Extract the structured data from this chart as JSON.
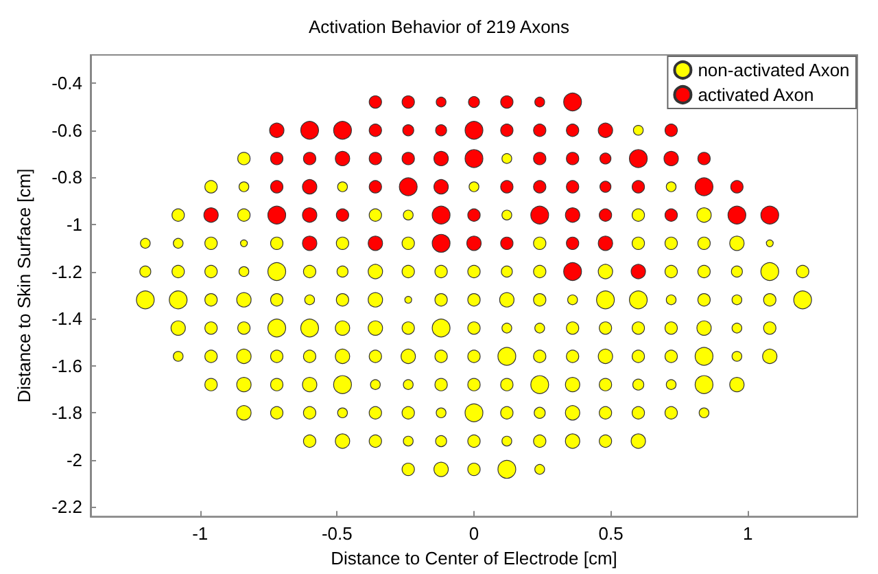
{
  "chart_data": {
    "type": "bubble",
    "title": "Activation Behavior of 219 Axons",
    "xlabel": "Distance to Center of Electrode [cm]",
    "ylabel": "Distance to Skin Surface [cm]",
    "xlim": [
      -1.4,
      1.4
    ],
    "xticks": [
      -1,
      -0.5,
      0,
      0.5,
      1
    ],
    "ylim": [
      -2.24,
      -0.28
    ],
    "yticks": [
      -2.2,
      -2,
      -1.8,
      -1.6,
      -1.4,
      -1.2,
      -1,
      -0.8,
      -0.6,
      -0.4
    ],
    "grid": false,
    "legend": "top right",
    "marker": "circle",
    "series": [
      {
        "name": "non-activated Axon",
        "color": "#ffff00",
        "x": [
          0.6,
          -0.84,
          0.12,
          -0.96,
          -0.84,
          -0.48,
          0,
          0.72,
          -1.08,
          -0.84,
          -0.36,
          -0.24,
          0.12,
          0.6,
          0.84,
          -1.2,
          -1.08,
          -0.96,
          -0.84,
          -0.72,
          -0.48,
          -0.24,
          0.24,
          0.6,
          0.72,
          0.84,
          0.96,
          1.08,
          -1.2,
          -1.08,
          -0.96,
          -0.84,
          -0.72,
          -0.6,
          -0.48,
          -0.36,
          -0.24,
          -0.12,
          0,
          0.12,
          0.24,
          0.48,
          0.72,
          0.84,
          0.96,
          1.08,
          1.2,
          -1.2,
          -1.08,
          -0.96,
          -0.84,
          -0.72,
          -0.6,
          -0.48,
          -0.36,
          -0.24,
          -0.12,
          0,
          0.12,
          0.24,
          0.36,
          0.48,
          0.6,
          0.72,
          0.84,
          0.96,
          1.08,
          1.2,
          -1.08,
          -0.96,
          -0.84,
          -0.72,
          -0.6,
          -0.48,
          -0.36,
          -0.24,
          -0.12,
          0,
          0.12,
          0.24,
          0.36,
          0.48,
          0.6,
          0.72,
          0.84,
          0.96,
          1.08,
          -1.08,
          -0.96,
          -0.84,
          -0.72,
          -0.6,
          -0.48,
          -0.36,
          -0.24,
          -0.12,
          0,
          0.12,
          0.24,
          0.36,
          0.48,
          0.6,
          0.72,
          0.84,
          0.96,
          1.08,
          -0.96,
          -0.84,
          -0.72,
          -0.6,
          -0.48,
          -0.36,
          -0.24,
          -0.12,
          0,
          0.12,
          0.24,
          0.36,
          0.48,
          0.6,
          0.72,
          0.84,
          0.96,
          -0.84,
          -0.72,
          -0.6,
          -0.48,
          -0.36,
          -0.24,
          -0.12,
          0,
          0.12,
          0.24,
          0.36,
          0.48,
          0.6,
          0.72,
          0.84,
          -0.6,
          -0.48,
          -0.36,
          -0.24,
          -0.12,
          0,
          0.12,
          0.24,
          0.36,
          0.48,
          0.6,
          -0.24,
          -0.12,
          0,
          0.12,
          0.24
        ],
        "values": [
          -0.6,
          -0.72,
          -0.72,
          -0.84,
          -0.84,
          -0.84,
          -0.84,
          -0.84,
          -0.96,
          -0.96,
          -0.96,
          -0.96,
          -0.96,
          -0.96,
          -0.96,
          -1.08,
          -1.08,
          -1.08,
          -1.08,
          -1.08,
          -1.08,
          -1.08,
          -1.08,
          -1.08,
          -1.08,
          -1.08,
          -1.08,
          -1.08,
          -1.2,
          -1.2,
          -1.2,
          -1.2,
          -1.2,
          -1.2,
          -1.2,
          -1.2,
          -1.2,
          -1.2,
          -1.2,
          -1.2,
          -1.2,
          -1.2,
          -1.2,
          -1.2,
          -1.2,
          -1.2,
          -1.2,
          -1.32,
          -1.32,
          -1.32,
          -1.32,
          -1.32,
          -1.32,
          -1.32,
          -1.32,
          -1.32,
          -1.32,
          -1.32,
          -1.32,
          -1.32,
          -1.32,
          -1.32,
          -1.32,
          -1.32,
          -1.32,
          -1.32,
          -1.32,
          -1.32,
          -1.44,
          -1.44,
          -1.44,
          -1.44,
          -1.44,
          -1.44,
          -1.44,
          -1.44,
          -1.44,
          -1.44,
          -1.44,
          -1.44,
          -1.44,
          -1.44,
          -1.44,
          -1.44,
          -1.44,
          -1.44,
          -1.44,
          -1.56,
          -1.56,
          -1.56,
          -1.56,
          -1.56,
          -1.56,
          -1.56,
          -1.56,
          -1.56,
          -1.56,
          -1.56,
          -1.56,
          -1.56,
          -1.56,
          -1.56,
          -1.56,
          -1.56,
          -1.56,
          -1.56,
          -1.68,
          -1.68,
          -1.68,
          -1.68,
          -1.68,
          -1.68,
          -1.68,
          -1.68,
          -1.68,
          -1.68,
          -1.68,
          -1.68,
          -1.68,
          -1.68,
          -1.68,
          -1.68,
          -1.68,
          -1.8,
          -1.8,
          -1.8,
          -1.8,
          -1.8,
          -1.8,
          -1.8,
          -1.8,
          -1.8,
          -1.8,
          -1.8,
          -1.8,
          -1.8,
          -1.8,
          -1.8,
          -1.92,
          -1.92,
          -1.92,
          -1.92,
          -1.92,
          -1.92,
          -1.92,
          -1.92,
          -1.92,
          -1.92,
          -1.92,
          -2.04,
          -2.04,
          -2.04,
          -2.04,
          -2.04
        ],
        "sizes": [
          0.3,
          0.48,
          0.3,
          0.48,
          0.3,
          0.3,
          0.3,
          0.3,
          0.48,
          0.48,
          0.48,
          0.3,
          0.3,
          0.48,
          0.65,
          0.3,
          0.3,
          0.48,
          0.15,
          0.48,
          0.48,
          0.48,
          0.48,
          0.48,
          0.48,
          0.48,
          0.65,
          0.15,
          0.38,
          0.48,
          0.48,
          0.3,
          1,
          0.48,
          0.38,
          0.65,
          0.48,
          0.48,
          0.48,
          0.38,
          0.48,
          0.65,
          0.48,
          0.48,
          0.38,
          1,
          0.48,
          1,
          1,
          0.48,
          0.65,
          0.48,
          0.3,
          0.48,
          0.65,
          0.15,
          0.48,
          0.48,
          0.65,
          0.48,
          0.3,
          1,
          1,
          0.3,
          0.48,
          0.3,
          0.48,
          1,
          0.65,
          0.48,
          0.48,
          1,
          1,
          0.65,
          0.65,
          0.48,
          1,
          0.48,
          0.3,
          0.3,
          0.48,
          0.48,
          0.48,
          0.48,
          0.65,
          0.3,
          0.48,
          0.3,
          0.48,
          0.65,
          0.48,
          0.48,
          0.65,
          0.48,
          0.65,
          0.48,
          0.48,
          1,
          0.48,
          0.48,
          0.65,
          0.48,
          0.48,
          1,
          0.3,
          0.65,
          0.48,
          0.65,
          0.48,
          0.65,
          1,
          0.3,
          0.3,
          0.48,
          0.48,
          0.48,
          1,
          0.65,
          0.48,
          0.38,
          0.3,
          1,
          0.65,
          0.65,
          0.48,
          0.48,
          0.3,
          0.48,
          0.48,
          0.3,
          1,
          0.48,
          0.38,
          0.65,
          0.48,
          0.48,
          0.48,
          0.3,
          0.48,
          0.65,
          0.48,
          0.3,
          0.38,
          0.48,
          0.3,
          0.48,
          0.65,
          0.48,
          0.65,
          0.48,
          0.65,
          0.48,
          1,
          0.3
        ]
      },
      {
        "name": "activated Axon",
        "color": "#ff0000",
        "x": [
          -0.36,
          -0.24,
          -0.12,
          0,
          0.12,
          0.24,
          0.36,
          -0.72,
          -0.6,
          -0.48,
          -0.36,
          -0.24,
          -0.12,
          0,
          0.12,
          0.24,
          0.36,
          0.48,
          0.72,
          -0.72,
          -0.6,
          -0.48,
          -0.36,
          -0.24,
          -0.12,
          0,
          0.24,
          0.36,
          0.48,
          0.6,
          0.72,
          0.84,
          -0.72,
          -0.6,
          -0.36,
          -0.24,
          -0.12,
          0.12,
          0.24,
          0.36,
          0.48,
          0.6,
          0.84,
          0.96,
          -0.96,
          -0.72,
          -0.6,
          -0.48,
          -0.12,
          0,
          0.24,
          0.36,
          0.48,
          0.72,
          0.96,
          1.08,
          -0.6,
          -0.36,
          -0.12,
          0,
          0.12,
          0.36,
          0.48,
          0.36,
          0.6
        ],
        "values": [
          -0.48,
          -0.48,
          -0.48,
          -0.48,
          -0.48,
          -0.48,
          -0.48,
          -0.6,
          -0.6,
          -0.6,
          -0.6,
          -0.6,
          -0.6,
          -0.6,
          -0.6,
          -0.6,
          -0.6,
          -0.6,
          -0.6,
          -0.72,
          -0.72,
          -0.72,
          -0.72,
          -0.72,
          -0.72,
          -0.72,
          -0.72,
          -0.72,
          -0.72,
          -0.72,
          -0.72,
          -0.72,
          -0.84,
          -0.84,
          -0.84,
          -0.84,
          -0.84,
          -0.84,
          -0.84,
          -0.84,
          -0.84,
          -0.84,
          -0.84,
          -0.84,
          -0.96,
          -0.96,
          -0.96,
          -0.96,
          -0.96,
          -0.96,
          -0.96,
          -0.96,
          -0.96,
          -0.96,
          -0.96,
          -0.96,
          -1.08,
          -1.08,
          -1.08,
          -1.08,
          -1.08,
          -1.08,
          -1.08,
          -1.2,
          -1.2
        ],
        "sizes": [
          0.48,
          0.48,
          0.3,
          0.38,
          0.48,
          0.3,
          1,
          0.65,
          1,
          1,
          0.48,
          0.38,
          0.38,
          1,
          0.48,
          0.48,
          0.48,
          0.65,
          0.48,
          0.48,
          0.48,
          0.65,
          0.48,
          0.48,
          0.65,
          1,
          0.48,
          0.48,
          0.38,
          1,
          0.65,
          0.48,
          0.48,
          0.65,
          0.48,
          1,
          0.65,
          0.48,
          0.48,
          0.48,
          0.38,
          0.48,
          1,
          0.48,
          0.65,
          1,
          0.65,
          0.48,
          1,
          0.48,
          1,
          0.65,
          0.48,
          0.48,
          1,
          1,
          0.65,
          0.65,
          1,
          0.65,
          0.48,
          0.48,
          0.65,
          1,
          0.65
        ]
      }
    ]
  }
}
